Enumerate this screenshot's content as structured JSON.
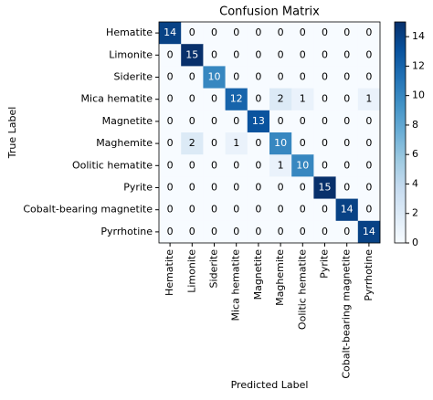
{
  "chart_data": {
    "type": "heatmap",
    "title": "Confusion Matrix",
    "x_label": "Predicted Label",
    "y_label": "True Label",
    "x_categories": [
      "Hematite",
      "Limonite",
      "Siderite",
      "Mica hematite",
      "Magnetite",
      "Maghemite",
      "Oolitic hematite",
      "Pyrite",
      "Cobalt-bearing magnetite",
      "Pyrrhotine"
    ],
    "y_categories": [
      "Hematite",
      "Limonite",
      "Siderite",
      "Mica hematite",
      "Magnetite",
      "Maghemite",
      "Oolitic hematite",
      "Pyrite",
      "Cobalt-bearing magnetite",
      "Pyrrhotine"
    ],
    "values": [
      [
        14,
        0,
        0,
        0,
        0,
        0,
        0,
        0,
        0,
        0
      ],
      [
        0,
        15,
        0,
        0,
        0,
        0,
        0,
        0,
        0,
        0
      ],
      [
        0,
        0,
        10,
        0,
        0,
        0,
        0,
        0,
        0,
        0
      ],
      [
        0,
        0,
        0,
        12,
        0,
        2,
        1,
        0,
        0,
        1
      ],
      [
        0,
        0,
        0,
        0,
        13,
        0,
        0,
        0,
        0,
        0
      ],
      [
        0,
        2,
        0,
        1,
        0,
        10,
        0,
        0,
        0,
        0
      ],
      [
        0,
        0,
        0,
        0,
        0,
        1,
        10,
        0,
        0,
        0
      ],
      [
        0,
        0,
        0,
        0,
        0,
        0,
        0,
        15,
        0,
        0
      ],
      [
        0,
        0,
        0,
        0,
        0,
        0,
        0,
        0,
        14,
        0
      ],
      [
        0,
        0,
        0,
        0,
        0,
        0,
        0,
        0,
        0,
        14
      ]
    ],
    "colormap": [
      "#f7fbff",
      "#deebf7",
      "#c6dbef",
      "#9ecae1",
      "#6baed6",
      "#4292c6",
      "#2171b5",
      "#08519c",
      "#08306b"
    ],
    "clim": [
      0,
      15
    ],
    "colorbar_ticks": [
      0,
      2,
      4,
      6,
      8,
      10,
      12,
      14
    ]
  }
}
